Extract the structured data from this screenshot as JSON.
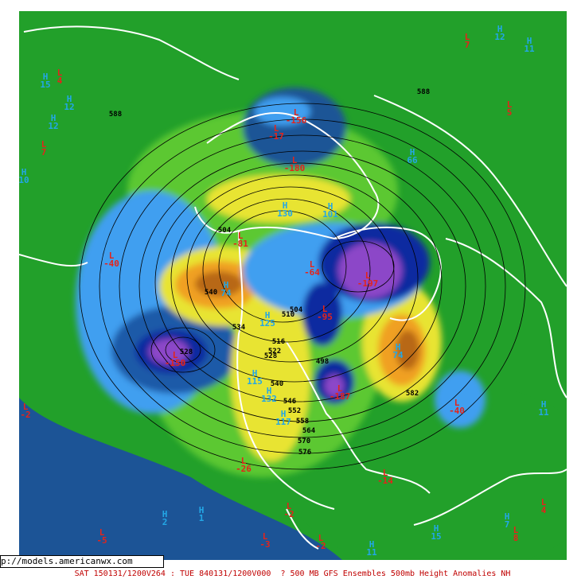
{
  "url": "p://models.americanwx.com",
  "caption": "SAT 150131/1200V264 : TUE 840131/1200V000  ? 500 MB GFS Ensembles 500mb Height Anomalies NH",
  "highs": [
    {
      "letter": "H",
      "value": "15"
    },
    {
      "letter": "H",
      "value": "12"
    },
    {
      "letter": "H",
      "value": "12"
    },
    {
      "letter": "H",
      "value": "10"
    },
    {
      "letter": "H",
      "value": "12"
    },
    {
      "letter": "H",
      "value": "11"
    },
    {
      "letter": "H",
      "value": "66"
    },
    {
      "letter": "H",
      "value": "130"
    },
    {
      "letter": "H",
      "value": "101"
    },
    {
      "letter": "H",
      "value": "74"
    },
    {
      "letter": "H",
      "value": "125"
    },
    {
      "letter": "H",
      "value": "115"
    },
    {
      "letter": "H",
      "value": "132"
    },
    {
      "letter": "H",
      "value": "117"
    },
    {
      "letter": "H",
      "value": "74"
    },
    {
      "letter": "H",
      "value": "11"
    },
    {
      "letter": "H",
      "value": "2"
    },
    {
      "letter": "H",
      "value": "1"
    },
    {
      "letter": "H",
      "value": "11"
    },
    {
      "letter": "H",
      "value": "15"
    },
    {
      "letter": "H",
      "value": "7"
    }
  ],
  "lows": [
    {
      "letter": "L",
      "value": "4"
    },
    {
      "letter": "L",
      "value": "7"
    },
    {
      "letter": "L",
      "value": "-40"
    },
    {
      "letter": "L",
      "value": "-17"
    },
    {
      "letter": "L",
      "value": "-156"
    },
    {
      "letter": "L",
      "value": "-180"
    },
    {
      "letter": "L",
      "value": "-81"
    },
    {
      "letter": "L",
      "value": "-64"
    },
    {
      "letter": "L",
      "value": "-197"
    },
    {
      "letter": "L",
      "value": "-95"
    },
    {
      "letter": "L",
      "value": "-150"
    },
    {
      "letter": "L",
      "value": "-187"
    },
    {
      "letter": "L",
      "value": "-40"
    },
    {
      "letter": "L",
      "value": "-2"
    },
    {
      "letter": "L",
      "value": "-26"
    },
    {
      "letter": "L",
      "value": "-14"
    },
    {
      "letter": "L",
      "value": "-5"
    },
    {
      "letter": "L",
      "value": "-3"
    },
    {
      "letter": "L",
      "value": "-2"
    },
    {
      "letter": "L",
      "value": "-2"
    },
    {
      "letter": "L",
      "value": "4"
    },
    {
      "letter": "L",
      "value": "8"
    },
    {
      "letter": "L",
      "value": "5"
    },
    {
      "letter": "L",
      "value": "7"
    }
  ],
  "contour_labels": [
    "588",
    "588",
    "504",
    "540",
    "534",
    "510",
    "504",
    "516",
    "522",
    "528",
    "528",
    "498",
    "540",
    "546",
    "552",
    "558",
    "564",
    "570",
    "576",
    "582"
  ]
}
